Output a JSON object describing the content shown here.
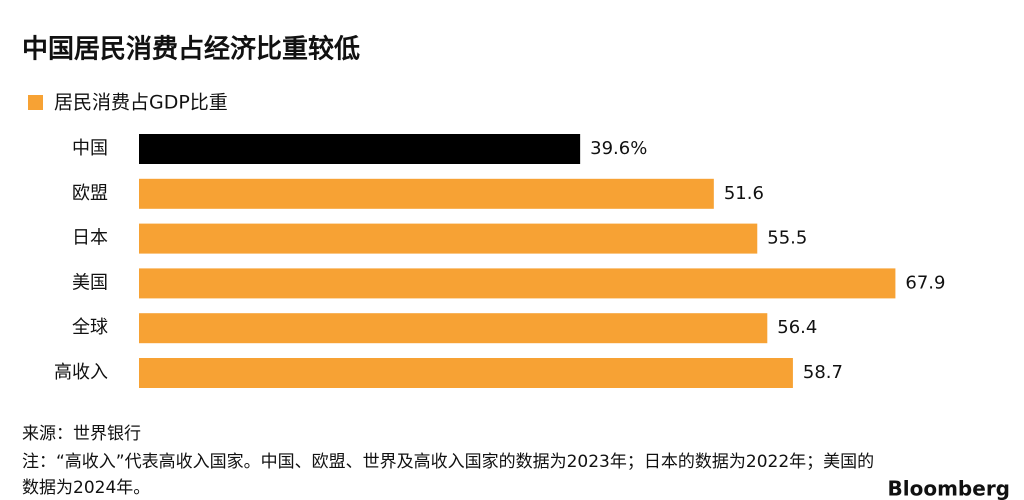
{
  "chart_data": {
    "type": "bar",
    "orientation": "horizontal",
    "title": "中国居民消费占经济比重较低",
    "categories": [
      "中国",
      "欧盟",
      "日本",
      "美国",
      "全球",
      "高收入"
    ],
    "series": [
      {
        "name": "居民消费占GDP比重",
        "color": "#f7a234",
        "values": [
          39.6,
          51.6,
          55.5,
          67.9,
          56.4,
          58.7
        ],
        "value_labels": [
          "39.6%",
          "51.6",
          "55.5",
          "67.9",
          "56.4",
          "58.7"
        ],
        "colors": [
          "#000000",
          "#f7a234",
          "#f7a234",
          "#f7a234",
          "#f7a234",
          "#f7a234"
        ]
      }
    ],
    "source": "来源：世界银行",
    "note": "注：“高收入”代表高收入国家。中国、欧盟、世界及高收入国家的数据为2023年；日本的数据为2022年；美国的数据为2024年。",
    "brand": "Bloomberg"
  }
}
